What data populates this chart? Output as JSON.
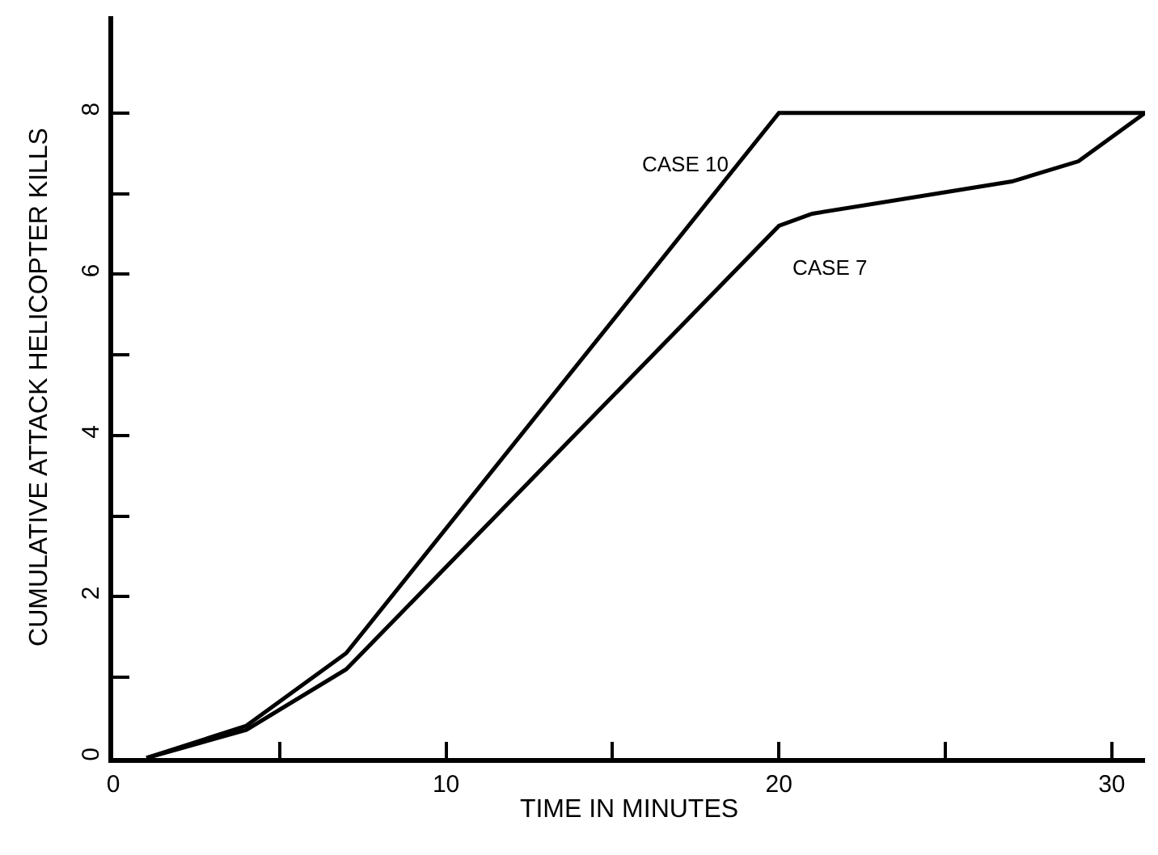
{
  "chart_data": {
    "type": "line",
    "xlabel": "TIME IN MINUTES",
    "ylabel": "CUMULATIVE ATTACK HELICOPTER KILLS",
    "xlim": [
      0,
      31
    ],
    "ylim": [
      0,
      9.2
    ],
    "xticks": [
      0,
      {
        "value": 5,
        "label": null
      },
      10,
      {
        "value": 15,
        "label": null
      },
      20,
      {
        "value": 25,
        "label": null
      },
      30
    ],
    "yticks": [
      0,
      {
        "value": 1,
        "label": null
      },
      2,
      {
        "value": 3,
        "label": null
      },
      4,
      {
        "value": 5,
        "label": null
      },
      6,
      {
        "value": 7,
        "label": null
      },
      8
    ],
    "legend": false,
    "marker": "none",
    "line_style": "solid",
    "series": [
      {
        "name": "CASE 10",
        "color": "#000000",
        "x": [
          1,
          4,
          7,
          20,
          31
        ],
        "values": [
          0,
          0.4,
          1.3,
          8,
          8
        ]
      },
      {
        "name": "CASE 7",
        "color": "#000000",
        "x": [
          1,
          4,
          7,
          20,
          21,
          27,
          29,
          31
        ],
        "values": [
          0,
          0.35,
          1.1,
          6.6,
          6.75,
          7.15,
          7.4,
          8
        ]
      }
    ]
  }
}
